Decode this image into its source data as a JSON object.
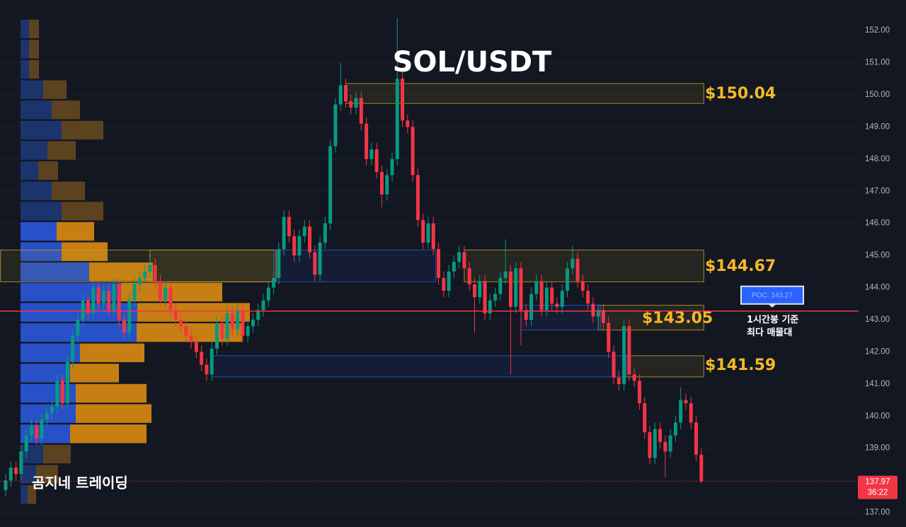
{
  "chart_data": {
    "type": "candlestick",
    "title": "SOL/USDT",
    "watermark": "곰지네 트레이딩",
    "ylim": [
      136.55,
      152.95
    ],
    "yticks": [
      {
        "value": 137,
        "label": "137.00"
      },
      {
        "value": 138,
        "label": "138.00"
      },
      {
        "value": 139,
        "label": "139.00"
      },
      {
        "value": 140,
        "label": "140.00"
      },
      {
        "value": 141,
        "label": "141.00"
      },
      {
        "value": 142,
        "label": "142.00"
      },
      {
        "value": 143,
        "label": "143.00"
      },
      {
        "value": 144,
        "label": "144.00"
      },
      {
        "value": 145,
        "label": "145.00"
      },
      {
        "value": 146,
        "label": "146.00"
      },
      {
        "value": 147,
        "label": "147.00"
      },
      {
        "value": 148,
        "label": "148.00"
      },
      {
        "value": 149,
        "label": "149.00"
      },
      {
        "value": 150,
        "label": "150.00"
      },
      {
        "value": 151,
        "label": "151.00"
      },
      {
        "value": 152,
        "label": "152.00"
      }
    ],
    "up_color": "#089981",
    "down_color": "#f23645",
    "open": [
      137.7,
      138.0,
      138.4,
      138.2,
      138.9,
      139.4,
      139.7,
      139.3,
      139.9,
      140.1,
      140.3,
      141.1,
      140.4,
      141.7,
      142.5,
      143.0,
      143.6,
      143.2,
      144.0,
      143.5,
      143.9,
      143.3,
      144.1,
      143.0,
      142.6,
      143.6,
      144.1,
      144.3,
      144.5,
      144.7,
      144.2,
      143.6,
      144.0,
      143.3,
      143.0,
      142.8,
      142.5,
      142.3,
      142.0,
      141.6,
      141.3,
      142.1,
      142.9,
      142.4,
      143.2,
      142.7,
      143.3,
      142.5,
      142.8,
      143.0,
      143.3,
      143.6,
      144.0,
      144.3,
      145.2,
      146.2,
      145.6,
      145.0,
      145.6,
      145.9,
      145.1,
      144.4,
      145.4,
      146.0,
      148.4,
      149.7,
      150.3,
      149.8,
      149.6,
      149.9,
      149.1,
      148.0,
      148.3,
      147.6,
      146.9,
      147.5,
      148.0,
      150.5,
      149.2,
      149.0,
      147.5,
      146.1,
      145.4,
      146.0,
      145.2,
      144.3,
      143.9,
      144.5,
      144.8,
      145.1,
      144.6,
      144.1,
      143.7,
      144.2,
      143.2,
      143.6,
      143.8,
      144.3,
      144.5,
      143.4,
      144.6,
      143.3,
      143.0,
      143.8,
      144.2,
      143.3,
      144.0,
      143.5,
      143.4,
      143.9,
      144.6,
      144.9,
      144.2,
      143.9,
      143.5,
      143.1,
      143.3,
      142.9,
      142.0,
      141.2,
      141.0,
      142.8,
      141.3,
      141.1,
      140.4,
      139.5,
      138.7,
      139.6,
      139.2,
      138.9,
      139.4,
      139.8,
      140.5,
      140.4,
      139.8,
      138.8
    ],
    "high": [
      138.2,
      138.6,
      138.6,
      139.1,
      139.6,
      139.9,
      139.9,
      140.1,
      140.3,
      140.5,
      141.3,
      141.3,
      141.9,
      142.7,
      143.2,
      143.8,
      143.8,
      144.2,
      144.2,
      144.1,
      144.1,
      144.3,
      144.3,
      143.2,
      143.8,
      144.3,
      144.5,
      144.7,
      144.9,
      144.9,
      144.4,
      144.2,
      144.2,
      143.5,
      143.2,
      143.0,
      142.7,
      142.5,
      142.2,
      141.8,
      142.3,
      143.1,
      143.1,
      143.4,
      143.4,
      143.5,
      143.5,
      143.0,
      143.2,
      143.5,
      143.8,
      144.2,
      144.5,
      145.4,
      146.4,
      146.4,
      145.8,
      145.8,
      146.1,
      146.1,
      145.3,
      145.6,
      146.2,
      148.6,
      149.9,
      151.0,
      150.5,
      150.0,
      150.1,
      150.1,
      149.3,
      148.5,
      148.5,
      147.8,
      147.7,
      148.2,
      152.4,
      150.7,
      149.4,
      149.2,
      147.7,
      146.3,
      146.2,
      146.2,
      145.4,
      144.5,
      144.7,
      145.0,
      145.3,
      145.3,
      144.8,
      144.3,
      144.4,
      144.4,
      143.8,
      144.0,
      144.5,
      145.5,
      144.7,
      144.8,
      144.8,
      143.5,
      144.0,
      144.4,
      144.4,
      144.2,
      144.2,
      143.7,
      144.1,
      144.8,
      145.3,
      145.1,
      144.4,
      144.1,
      143.7,
      143.5,
      143.5,
      143.1,
      142.2,
      141.4,
      143.0,
      143.0,
      141.5,
      141.3,
      140.6,
      139.7,
      139.8,
      139.8,
      139.4,
      139.6,
      140.0,
      140.9,
      140.7,
      140.6,
      140.0,
      139.0
    ],
    "low": [
      137.5,
      137.8,
      138.0,
      138.0,
      138.7,
      139.2,
      139.1,
      139.1,
      139.7,
      139.9,
      140.1,
      140.2,
      140.2,
      141.5,
      142.3,
      142.8,
      143.0,
      143.0,
      143.3,
      143.3,
      143.1,
      143.1,
      142.8,
      142.4,
      142.4,
      143.4,
      143.9,
      144.1,
      144.3,
      144.0,
      143.4,
      143.4,
      143.1,
      142.8,
      142.6,
      142.3,
      142.1,
      141.8,
      141.4,
      141.1,
      141.1,
      141.9,
      142.2,
      142.2,
      142.5,
      142.5,
      142.3,
      142.3,
      142.6,
      142.8,
      143.1,
      143.4,
      143.8,
      144.1,
      145.0,
      145.4,
      144.8,
      144.8,
      145.4,
      144.9,
      144.2,
      144.2,
      145.2,
      145.8,
      148.2,
      149.5,
      149.6,
      149.4,
      149.4,
      148.9,
      147.8,
      147.8,
      147.4,
      146.5,
      146.7,
      147.3,
      147.8,
      149.0,
      148.8,
      147.3,
      145.9,
      145.2,
      145.2,
      145.0,
      144.1,
      143.7,
      143.7,
      144.3,
      144.6,
      144.4,
      143.9,
      142.6,
      143.5,
      143.0,
      143.0,
      143.4,
      143.6,
      144.1,
      141.3,
      143.2,
      142.2,
      142.8,
      142.8,
      143.6,
      143.1,
      143.1,
      143.3,
      143.2,
      143.2,
      143.7,
      144.4,
      144.0,
      143.7,
      143.3,
      142.9,
      142.9,
      142.7,
      141.8,
      141.0,
      140.8,
      140.8,
      141.1,
      140.9,
      140.2,
      139.3,
      138.5,
      138.5,
      139.0,
      138.1,
      138.7,
      139.2,
      139.6,
      140.2,
      139.6,
      138.6,
      137.9
    ],
    "close": [
      138.0,
      138.4,
      138.2,
      138.9,
      139.4,
      139.7,
      139.3,
      139.9,
      140.1,
      140.3,
      141.1,
      140.4,
      141.7,
      142.5,
      143.0,
      143.6,
      143.2,
      144.0,
      143.5,
      143.9,
      143.3,
      144.1,
      143.0,
      142.6,
      143.6,
      144.1,
      144.3,
      144.5,
      144.7,
      144.2,
      143.6,
      144.0,
      143.3,
      143.0,
      142.8,
      142.5,
      142.3,
      142.0,
      141.6,
      141.3,
      142.1,
      142.9,
      142.4,
      143.2,
      142.7,
      143.3,
      142.5,
      142.8,
      143.0,
      143.3,
      143.6,
      144.0,
      144.3,
      145.2,
      146.2,
      145.6,
      145.0,
      145.6,
      145.9,
      145.1,
      144.4,
      145.4,
      146.0,
      148.4,
      149.7,
      150.3,
      149.8,
      149.6,
      149.9,
      149.1,
      148.0,
      148.3,
      147.6,
      146.9,
      147.5,
      148.0,
      150.5,
      149.2,
      149.0,
      147.5,
      146.1,
      145.4,
      146.0,
      145.2,
      144.3,
      143.9,
      144.5,
      144.8,
      145.1,
      144.6,
      144.1,
      143.7,
      144.2,
      143.2,
      143.6,
      143.8,
      144.3,
      144.5,
      143.4,
      144.6,
      143.3,
      143.0,
      143.8,
      144.2,
      143.3,
      144.0,
      143.5,
      143.4,
      143.9,
      144.6,
      144.9,
      144.2,
      143.9,
      143.5,
      143.1,
      143.3,
      142.9,
      142.0,
      141.2,
      141.0,
      142.8,
      141.3,
      141.1,
      140.4,
      139.5,
      138.7,
      139.6,
      139.2,
      138.9,
      139.4,
      139.8,
      140.5,
      140.4,
      139.8,
      138.8,
      137.97
    ],
    "zones": [
      {
        "label": "$150.04",
        "value": 150.04,
        "low": 149.73,
        "high": 150.35,
        "start": 66,
        "end": 135,
        "color": "#c9a227"
      },
      {
        "label": "$144.67",
        "value": 144.67,
        "low": 144.18,
        "high": 145.17,
        "start": 89,
        "end": 135,
        "color": "#c9a227"
      },
      {
        "label": "$143.05",
        "value": 143.05,
        "low": 142.68,
        "high": 143.45,
        "start": 115,
        "end": 135,
        "color": "#c9a227"
      },
      {
        "label": "$141.59",
        "value": 141.59,
        "low": 141.22,
        "high": 141.88,
        "start": 120,
        "end": 135,
        "color": "#c9a227"
      },
      {
        "low": 144.18,
        "high": 145.17,
        "start": -1,
        "end": 52,
        "color": "#c9a227"
      },
      {
        "low": 144.18,
        "high": 145.17,
        "start": 28,
        "end": 52,
        "color": "#c9a227"
      },
      {
        "low": 144.18,
        "high": 145.17,
        "start": 52,
        "end": 83,
        "color": "#2962ff"
      },
      {
        "low": 142.68,
        "high": 143.45,
        "start": 100,
        "end": 115,
        "color": "#2962ff"
      },
      {
        "low": 141.22,
        "high": 141.88,
        "start": 40,
        "end": 120,
        "color": "#2962ff"
      }
    ],
    "poc": {
      "value": 143.27,
      "label": "POC: 143.27",
      "color": "#f23645"
    },
    "annotation": [
      "1시간봉 기준",
      "최다 매물대"
    ],
    "last_price": 137.97,
    "countdown": "36:22",
    "volume_profile": {
      "levels": [
        152.05,
        151.42,
        150.79,
        150.16,
        149.53,
        148.9,
        148.27,
        147.64,
        147.01,
        146.38,
        145.75,
        145.12,
        144.49,
        143.86,
        143.23,
        142.6,
        141.97,
        141.34,
        140.71,
        140.08,
        139.45,
        138.82,
        138.19,
        137.56
      ],
      "down_volume": [
        12,
        12,
        12,
        32,
        44,
        58,
        38,
        25,
        44,
        58,
        51,
        58,
        97,
        142,
        165,
        164,
        84,
        70,
        78,
        78,
        70,
        32,
        22,
        10
      ],
      "up_volume": [
        14,
        14,
        14,
        33,
        40,
        59,
        40,
        28,
        47,
        59,
        53,
        65,
        90,
        143,
        159,
        149,
        91,
        69,
        100,
        107,
        108,
        39,
        31,
        12
      ],
      "value_area": [
        139.1,
        146.07
      ],
      "colors": {
        "down": "#2b5ce6",
        "up": "#e8910f",
        "down_dim": "#1f3a7a",
        "up_dim": "#6b4a20"
      }
    }
  }
}
